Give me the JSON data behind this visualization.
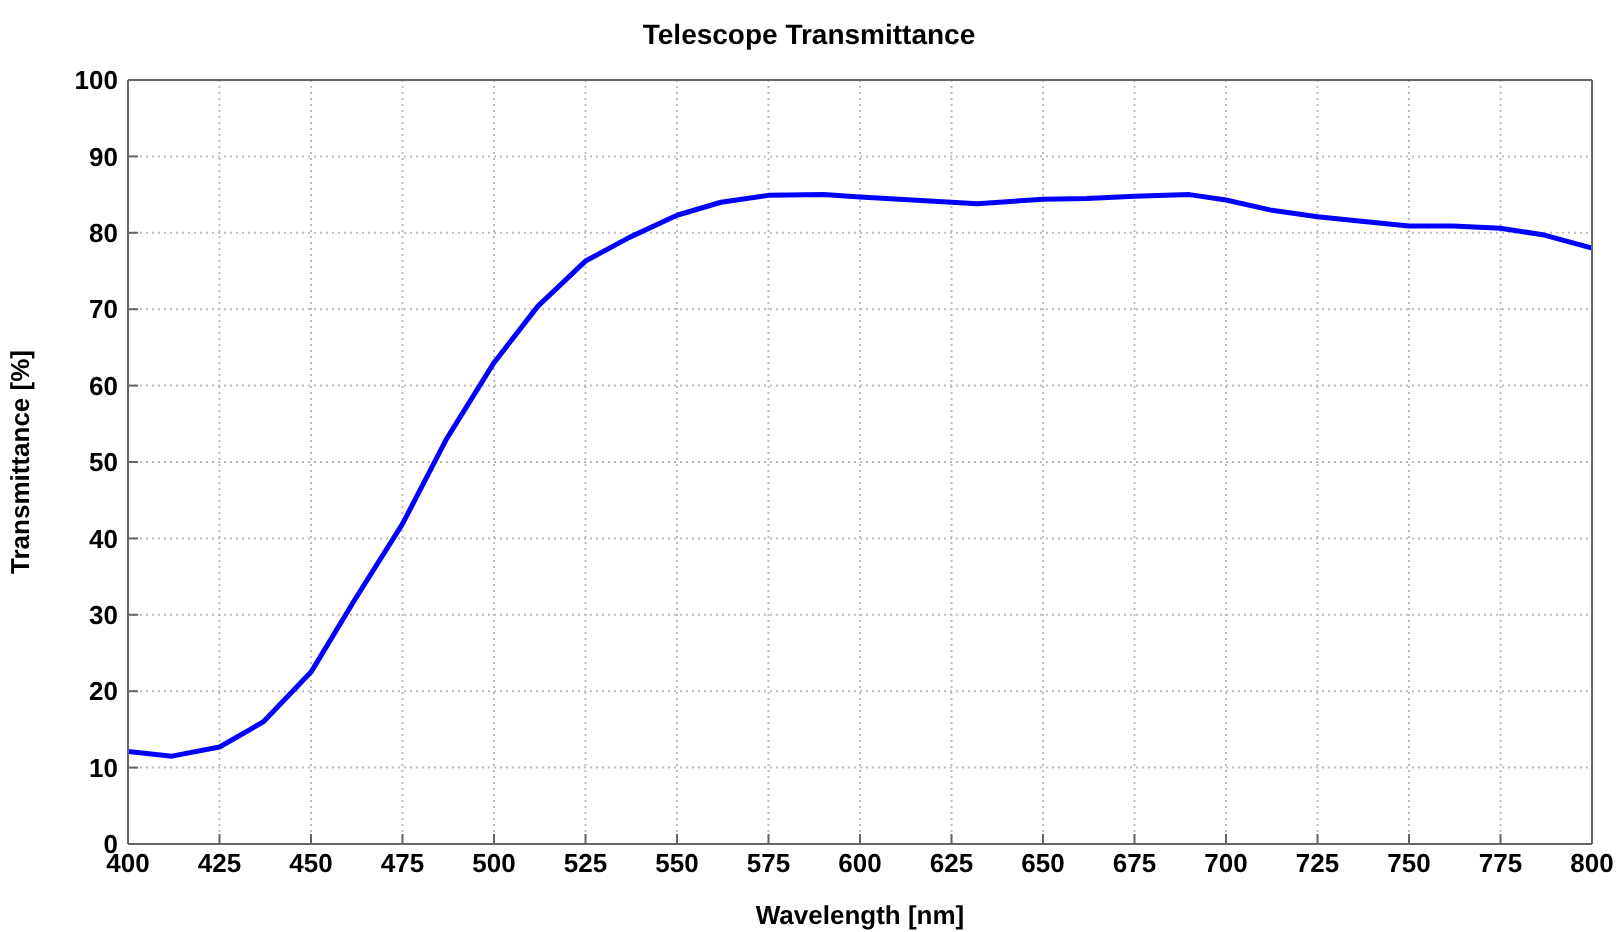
{
  "chart_data": {
    "type": "line",
    "title": "Telescope Transmittance",
    "xlabel": "Wavelength [nm]",
    "ylabel": "Transmittance [%]",
    "x": [
      400,
      412,
      425,
      437,
      450,
      462,
      475,
      487,
      500,
      512,
      525,
      537,
      550,
      562,
      575,
      590,
      600,
      625,
      632,
      650,
      662,
      675,
      690,
      700,
      712,
      725,
      737,
      750,
      762,
      775,
      787,
      800
    ],
    "series": [
      {
        "color": "#0000ff",
        "values": [
          12.1,
          11.5,
          12.7,
          16,
          22.5,
          32,
          41.9,
          53,
          63,
          70.4,
          76.3,
          79.4,
          82.3,
          84,
          84.9,
          85,
          84.7,
          84,
          83.8,
          84.4,
          84.5,
          84.8,
          85,
          84.3,
          83,
          82.1,
          81.5,
          80.9,
          80.9,
          80.6,
          79.7,
          78
        ]
      }
    ],
    "xlim": [
      400,
      800
    ],
    "xticks": [
      400,
      425,
      450,
      475,
      500,
      525,
      550,
      575,
      600,
      625,
      650,
      675,
      700,
      725,
      750,
      775,
      800
    ],
    "ylim": [
      0,
      100
    ],
    "yticks": [
      0,
      10,
      20,
      30,
      40,
      50,
      60,
      70,
      80,
      90,
      100
    ],
    "grid": true,
    "line_style": "solid",
    "marker": "none",
    "legend": false
  }
}
